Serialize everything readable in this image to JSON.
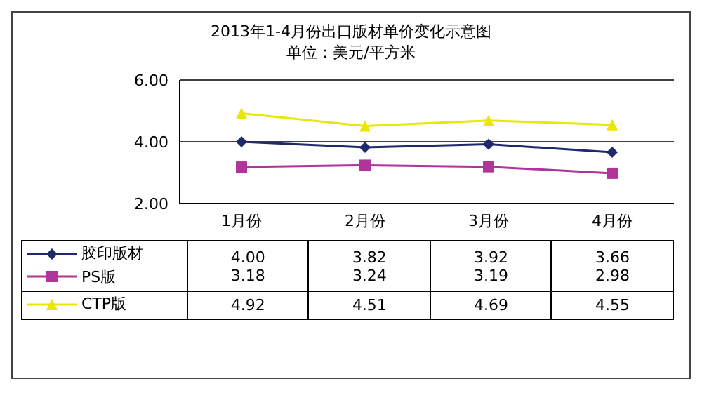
{
  "chart_data": {
    "type": "line",
    "title": "2013年1-4月份出口版材单价变化示意图",
    "subtitle": "单位：美元/平方米",
    "categories": [
      "1月份",
      "2月份",
      "3月份",
      "4月份"
    ],
    "series": [
      {
        "name": "胶印版材",
        "color": "#1f2a6e",
        "marker": "diamond",
        "values": [
          4.0,
          3.82,
          3.92,
          3.66
        ],
        "value_labels": [
          "4.00",
          "3.82",
          "3.92",
          "3.66"
        ]
      },
      {
        "name": "PS版",
        "color": "#b0359a",
        "marker": "square",
        "values": [
          3.18,
          3.24,
          3.19,
          2.98
        ],
        "value_labels": [
          "3.18",
          "3.24",
          "3.19",
          "2.98"
        ]
      },
      {
        "name": "CTP版",
        "color": "#e8e800",
        "marker": "triangle",
        "values": [
          4.92,
          4.51,
          4.69,
          4.55
        ],
        "value_labels": [
          "4.92",
          "4.51",
          "4.69",
          "4.55"
        ]
      }
    ],
    "ylim": [
      2,
      6
    ],
    "yticks": [
      {
        "value": 2,
        "label": "2.00"
      },
      {
        "value": 4,
        "label": "4.00"
      },
      {
        "value": 6,
        "label": "6.00"
      }
    ],
    "grid": "y",
    "legend": "bottom"
  }
}
